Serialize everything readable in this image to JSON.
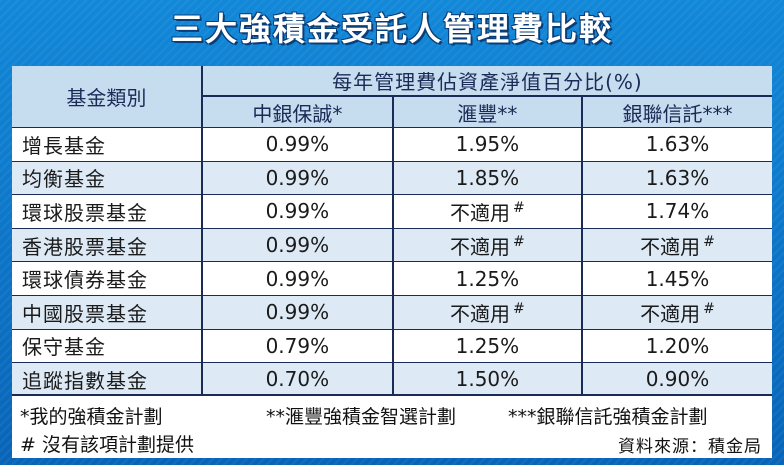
{
  "title": "三大強積金受託人管理費比較",
  "table": {
    "category_header": "基金類別",
    "group_header": "每年管理費佔資產淨值百分比(%)",
    "providers": [
      "中銀保誠*",
      "滙豐**",
      "銀聯信託***"
    ],
    "na_mark": "#",
    "rows": [
      {
        "category": "增長基金",
        "values": [
          "0.99%",
          "1.95%",
          "1.63%"
        ]
      },
      {
        "category": "均衡基金",
        "values": [
          "0.99%",
          "1.85%",
          "1.63%"
        ]
      },
      {
        "category": "環球股票基金",
        "values": [
          "0.99%",
          "不適用",
          "1.74%"
        ]
      },
      {
        "category": "香港股票基金",
        "values": [
          "0.99%",
          "不適用",
          "不適用"
        ]
      },
      {
        "category": "環球債券基金",
        "values": [
          "0.99%",
          "1.25%",
          "1.45%"
        ]
      },
      {
        "category": "中國股票基金",
        "values": [
          "0.99%",
          "不適用",
          "不適用"
        ]
      },
      {
        "category": "保守基金",
        "values": [
          "0.79%",
          "1.25%",
          "1.20%"
        ]
      },
      {
        "category": "追蹤指數基金",
        "values": [
          "0.70%",
          "1.50%",
          "0.90%"
        ]
      }
    ]
  },
  "notes": {
    "note1": "*我的強積金計劃",
    "note2": "**滙豐強積金智選計劃",
    "note3": "***銀聯信託強積金計劃",
    "note4": "# 沒有該項計劃提供",
    "source": "資料來源：積金局"
  },
  "colors": {
    "background": "#0a6fc4",
    "header_fill": "#c6dcef",
    "stripe_fill": "#dde9f4",
    "rule": "#1a2b55"
  }
}
